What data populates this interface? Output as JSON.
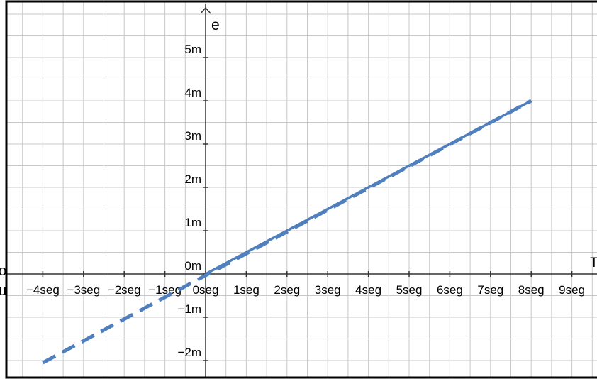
{
  "chart_data": {
    "type": "line",
    "title": "",
    "xlabel": "T",
    "ylabel": "e",
    "xlim": [
      -5.1,
      9.6
    ],
    "ylim": [
      -2.3,
      6.0
    ],
    "grid": true,
    "x_ticks": [
      -4,
      -3,
      -2,
      -1,
      0,
      1,
      2,
      3,
      4,
      5,
      6,
      7,
      8,
      9
    ],
    "x_tick_labels": [
      "−4seg",
      "−3seg",
      "−2seg",
      "−1seg",
      "0seg",
      "1seg",
      "2seg",
      "3seg",
      "4seg",
      "5seg",
      "6seg",
      "7seg",
      "8seg",
      "9seg"
    ],
    "y_ticks": [
      -2,
      -1,
      0,
      1,
      2,
      3,
      4,
      5
    ],
    "y_tick_labels": [
      "−2m",
      "−1m",
      "0m",
      "1m",
      "2m",
      "3m",
      "4m",
      "5m"
    ],
    "series": [
      {
        "style": "solid",
        "color": "#4f7fbd",
        "x": [
          0,
          8
        ],
        "y": [
          0,
          4.0
        ]
      },
      {
        "style": "dashed",
        "color": "#4f7fbd",
        "x": [
          -4,
          8
        ],
        "y": [
          -2.05,
          4.0
        ]
      }
    ]
  },
  "edge_text": {
    "left_top": "o",
    "left_bottom": "u"
  }
}
